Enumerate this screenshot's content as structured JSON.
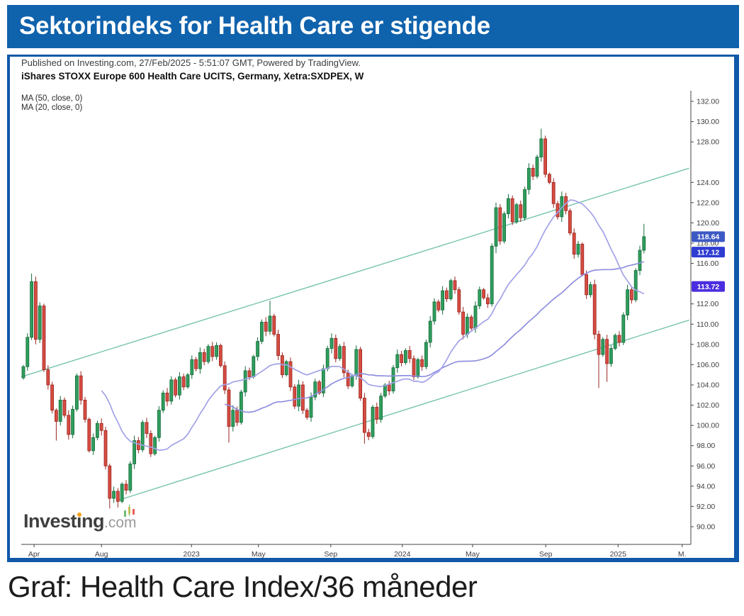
{
  "header": {
    "title": "Sektorindeks for Health Care er stigende"
  },
  "chart": {
    "published_line": "Published on Investing.com, 27/Feb/2025 - 5:51:07 GMT, Powered by TradingView.",
    "symbol_line": "iShares STOXX Europe 600 Health Care UCITS, Germany, Xetra:SXDPEX, W",
    "legend": [
      "MA (50, close, 0)",
      "MA (20, close, 0)"
    ],
    "watermark": {
      "brand": "Investing",
      "suffix": ".com"
    },
    "theme": {
      "header_bg": "#0f62ac",
      "frame_border": "#1158a8",
      "up_fill": "#2f9e5c",
      "up_stroke": "#176b3c",
      "down_fill": "#d64c41",
      "down_stroke": "#992621",
      "ma50_color": "#8f8fdf",
      "ma20_color": "#a2a2e8",
      "channel_color": "#76c4ae",
      "axis_color": "#444444"
    }
  },
  "chart_data": {
    "type": "candlestick",
    "title": "iShares STOXX Europe 600 Health Care UCITS, Germany, Xetra:SXDPEX",
    "interval": "W",
    "ylim": [
      88.25,
      133.05
    ],
    "grid": false,
    "y_tick_labels": [
      "132.00",
      "130.00",
      "128.00",
      "124.00",
      "122.00",
      "120.00",
      "118.00",
      "116.00",
      "112.00",
      "110.00",
      "108.00",
      "106.00",
      "104.00",
      "102.00",
      "100.00",
      "98.00",
      "96.00",
      "94.00",
      "92.00",
      "90.00"
    ],
    "x_ticks": [
      {
        "label": "Apr",
        "week": 2.6
      },
      {
        "label": "Aug",
        "week": 19
      },
      {
        "label": "2023",
        "week": 40.9
      },
      {
        "label": "May",
        "week": 57.2
      },
      {
        "label": "Sep",
        "week": 74.8
      },
      {
        "label": "2024",
        "week": 92.2
      },
      {
        "label": "May",
        "week": 109.3
      },
      {
        "label": "Sep",
        "week": 127.1
      },
      {
        "label": "2025",
        "week": 144.7
      },
      {
        "label": "M.",
        "week": 160.3
      }
    ],
    "price_badges": [
      {
        "name": "last-price-badge",
        "label": "118.64",
        "price": 118.64,
        "color": "#3d59c4"
      },
      {
        "name": "ma50-badge",
        "label": "117.12",
        "price": 117.12,
        "color": "#2f3cd2"
      },
      {
        "name": "ma20-badge",
        "label": "113.72",
        "price": 113.72,
        "color": "#4b2de0"
      }
    ],
    "candles": {
      "first_open": 104.7,
      "closes": [
        105.8,
        108.7,
        114.2,
        108.5,
        111.8,
        105.5,
        104.0,
        101.5,
        100.4,
        102.5,
        101.0,
        99.1,
        101.6,
        104.9,
        102.5,
        100.6,
        97.5,
        98.8,
        100.2,
        99.5,
        96.0,
        92.8,
        93.5,
        92.5,
        94.2,
        93.6,
        96.2,
        98.5,
        97.6,
        100.3,
        99.2,
        97.2,
        98.8,
        101.5,
        103.2,
        102.4,
        104.5,
        103.0,
        104.8,
        103.8,
        105.0,
        106.5,
        105.6,
        107.2,
        106.3,
        107.8,
        106.8,
        107.9,
        105.9,
        103.5,
        99.9,
        101.5,
        100.3,
        103.3,
        105.4,
        104.8,
        106.8,
        108.3,
        110.2,
        109.3,
        110.8,
        109.0,
        106.9,
        105.0,
        106.3,
        103.8,
        101.9,
        104.0,
        101.5,
        100.8,
        102.8,
        104.3,
        103.2,
        105.6,
        107.6,
        108.6,
        106.6,
        107.8,
        105.2,
        103.9,
        104.9,
        107.5,
        102.7,
        99.3,
        98.9,
        101.8,
        100.6,
        102.9,
        104.0,
        103.4,
        105.7,
        107.0,
        106.2,
        107.4,
        106.6,
        104.8,
        106.5,
        105.8,
        108.2,
        110.3,
        112.2,
        111.4,
        113.3,
        112.5,
        114.3,
        113.4,
        111.2,
        109.0,
        110.7,
        109.6,
        111.8,
        113.4,
        112.6,
        112.0,
        117.7,
        121.5,
        118.2,
        120.9,
        122.4,
        120.1,
        121.8,
        120.5,
        123.3,
        125.4,
        124.6,
        126.5,
        128.3,
        124.8,
        124.0,
        121.9,
        120.6,
        122.6,
        121.2,
        119.0,
        116.9,
        117.9,
        114.9,
        112.9,
        113.9,
        109.0,
        107.0,
        108.5,
        106.1,
        107.6,
        108.9,
        108.2,
        110.9,
        113.4,
        112.4,
        115.3,
        117.3,
        118.64
      ],
      "high_overrides": {
        "2": 115.0,
        "60": 112.3,
        "126": 129.3,
        "151": 119.9
      },
      "low_overrides": {
        "8": 98.5,
        "21": 91.8,
        "23": 91.9,
        "50": 98.3,
        "83": 98.2,
        "115": 117.0,
        "140": 103.7,
        "142": 104.3
      }
    },
    "moving_averages": [
      {
        "name": "MA50",
        "period": 50,
        "last_value": 117.12
      },
      {
        "name": "MA20",
        "period": 20,
        "last_value": 113.72
      }
    ],
    "trend_channel": [
      {
        "name": "upper",
        "w1": -0.5,
        "p1": 104.8,
        "w2": 162,
        "p2": 125.4
      },
      {
        "name": "lower",
        "w1": 23.0,
        "p1": 92.6,
        "w2": 162,
        "p2": 110.4
      }
    ]
  },
  "caption": {
    "text": "Graf: Health Care Index/36 måneder"
  }
}
